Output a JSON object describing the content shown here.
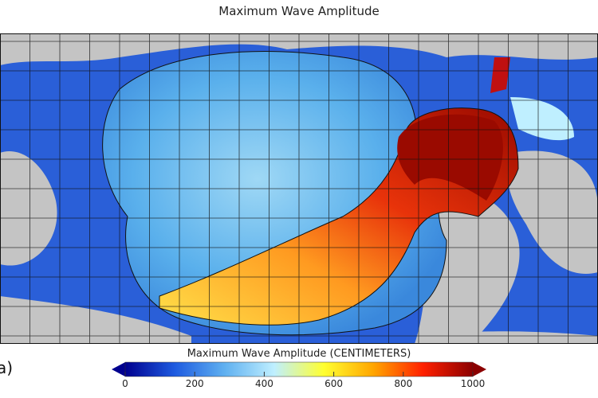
{
  "title": "Maximum Wave Amplitude",
  "panel_label": "a)",
  "colorbar": {
    "title": "Maximum Wave Amplitude (CENTIMETERS)",
    "ticks": [
      "0",
      "200",
      "400",
      "600",
      "800",
      "1000"
    ],
    "range": [
      0,
      1000
    ],
    "unit": "CENTIMETERS",
    "extend": "both",
    "colors": [
      "#00008f",
      "#1e5be0",
      "#5fb0f0",
      "#bfefff",
      "#ffff30",
      "#ffa500",
      "#ff2000",
      "#8b0000"
    ]
  },
  "colors": {
    "land": "#c4c4c4",
    "grid": "#000000"
  }
}
